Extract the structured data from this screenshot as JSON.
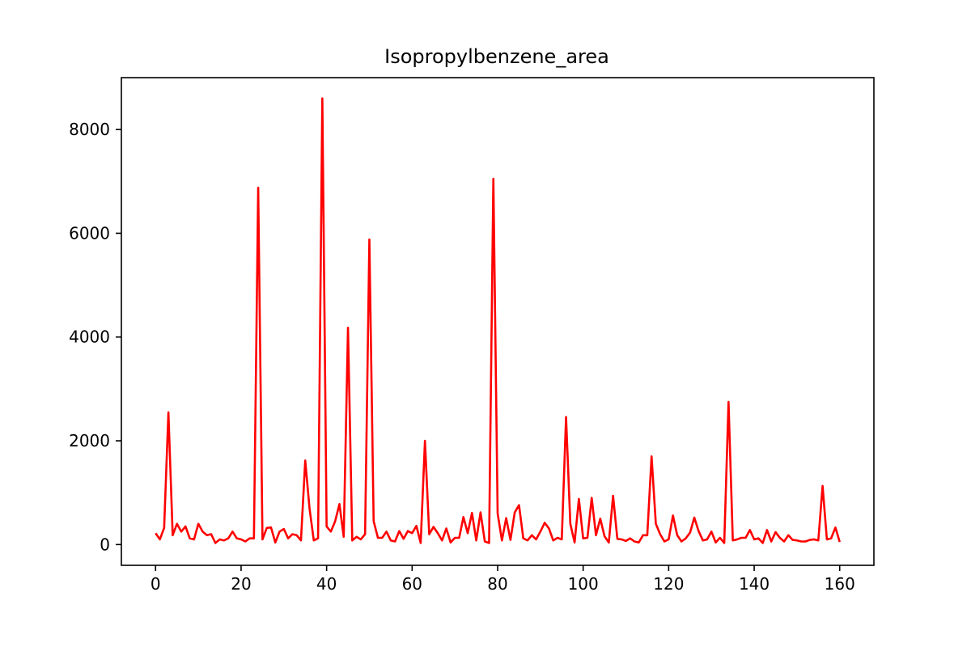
{
  "chart_data": {
    "type": "line",
    "title": "Isopropylbenzene_area",
    "xlabel": "",
    "ylabel": "",
    "xlim": [
      -8,
      168
    ],
    "ylim": [
      -400,
      9000
    ],
    "grid": false,
    "legend": "none",
    "xticks": [
      0,
      20,
      40,
      60,
      80,
      100,
      120,
      140,
      160
    ],
    "yticks": [
      0,
      2000,
      4000,
      6000,
      8000
    ],
    "line_color": "#ff0000",
    "series": [
      {
        "values": [
          220,
          100,
          320,
          2550,
          180,
          400,
          250,
          350,
          120,
          100,
          400,
          250,
          180,
          200,
          30,
          100,
          80,
          120,
          250,
          120,
          100,
          60,
          120,
          120,
          6880,
          100,
          320,
          330,
          40,
          250,
          300,
          120,
          200,
          180,
          80,
          1620,
          700,
          80,
          120,
          8600,
          350,
          250,
          450,
          780,
          150,
          4180,
          80,
          150,
          100,
          200,
          5880,
          450,
          130,
          130,
          250,
          80,
          60,
          260,
          110,
          260,
          220,
          360,
          30,
          2000,
          200,
          340,
          220,
          80,
          310,
          40,
          130,
          130,
          530,
          220,
          610,
          80,
          620,
          60,
          30,
          7050,
          600,
          80,
          510,
          90,
          620,
          760,
          120,
          80,
          180,
          100,
          250,
          420,
          310,
          80,
          130,
          100,
          2460,
          400,
          40,
          880,
          120,
          130,
          900,
          180,
          500,
          160,
          40,
          940,
          110,
          100,
          70,
          120,
          60,
          40,
          180,
          180,
          1700,
          400,
          200,
          60,
          100,
          560,
          180,
          60,
          120,
          230,
          520,
          260,
          80,
          100,
          250,
          40,
          130,
          30,
          2750,
          80,
          100,
          130,
          130,
          280,
          100,
          120,
          30,
          280,
          60,
          240,
          130,
          60,
          180,
          90,
          80,
          60,
          60,
          90,
          100,
          80,
          1130,
          100,
          120,
          330,
          50
        ]
      }
    ]
  }
}
